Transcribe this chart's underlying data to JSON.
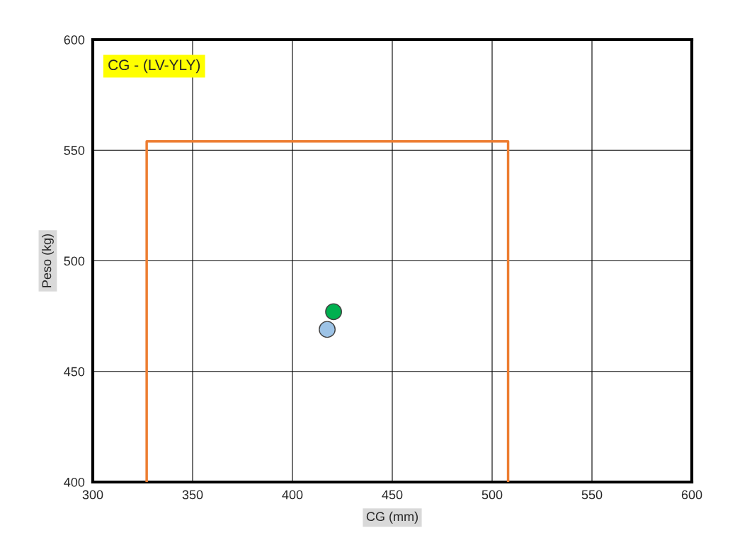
{
  "chart_data": {
    "type": "scatter",
    "xlabel": "CG (mm)",
    "ylabel": "Peso (kg)",
    "annotations": [
      "CG - (LV-YLY)"
    ],
    "series": [
      {
        "type": "line",
        "color": "#ed7d31",
        "x": [
          327,
          327,
          508,
          508
        ],
        "values": [
          400,
          554,
          554,
          400
        ],
        "marker": "none"
      },
      {
        "color": "#9dc3e6",
        "x": [
          417.4
        ],
        "values": [
          469
        ],
        "marker": "circle"
      },
      {
        "color": "#00b050",
        "x": [
          420.6
        ],
        "values": [
          477
        ],
        "marker": "circle"
      }
    ],
    "xlim": [
      300,
      600
    ],
    "xticks": [
      300,
      350,
      400,
      450,
      500,
      550,
      600
    ],
    "ylim": [
      400,
      600
    ],
    "yticks": [
      400,
      450,
      500,
      550,
      600
    ],
    "grid": true,
    "legend": false
  }
}
